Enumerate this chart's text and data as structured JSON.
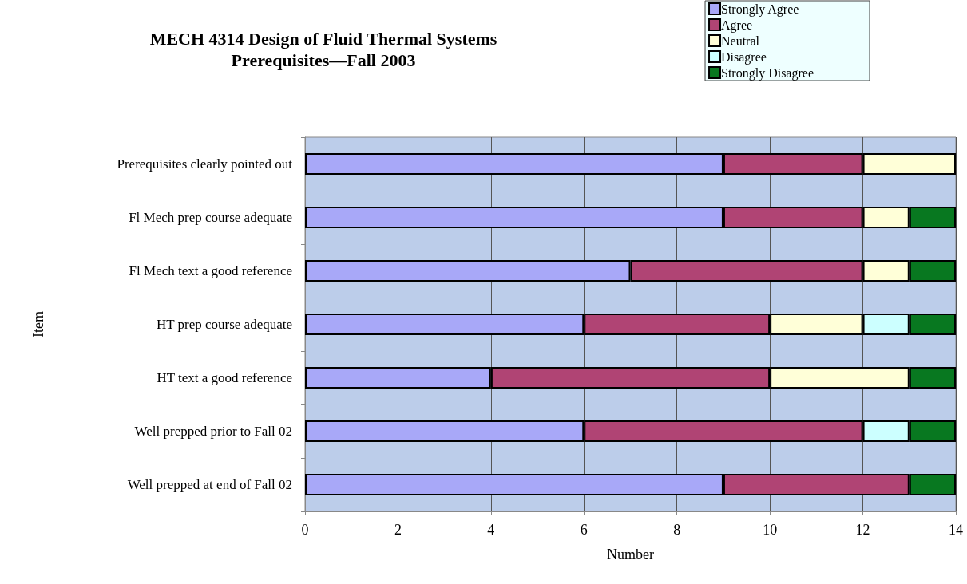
{
  "chart_data": {
    "type": "bar",
    "orientation": "horizontal",
    "stacked": true,
    "title": "MECH 4314 Design of Fluid Thermal Systems\nPrerequisites—Fall 2003",
    "xlabel": "Number",
    "ylabel": "Item",
    "categories": [
      "Prerequisites clearly pointed out",
      "Fl Mech prep course adequate",
      "Fl Mech text a good reference",
      "HT prep course adequate",
      "HT text a good reference",
      "Well prepped prior to Fall 02",
      "Well prepped at end of Fall 02"
    ],
    "series": [
      {
        "name": "Strongly Agree",
        "color": "#a8a8f8",
        "values": [
          9,
          9,
          7,
          6,
          4,
          6,
          9
        ]
      },
      {
        "name": "Agree",
        "color": "#b04474",
        "values": [
          3,
          3,
          5,
          4,
          6,
          6,
          4
        ]
      },
      {
        "name": "Neutral",
        "color": "#ffffd8",
        "values": [
          2,
          1,
          1,
          2,
          3,
          0,
          0
        ]
      },
      {
        "name": "Disagree",
        "color": "#ccffff",
        "values": [
          0,
          0,
          0,
          1,
          0,
          1,
          0
        ]
      },
      {
        "name": "Strongly Disagree",
        "color": "#087820",
        "values": [
          0,
          1,
          1,
          1,
          1,
          1,
          1
        ]
      }
    ],
    "xlim": [
      0,
      14
    ],
    "xticks": [
      0,
      2,
      4,
      6,
      8,
      10,
      12,
      14
    ],
    "grid": "x",
    "legend": "top right"
  }
}
